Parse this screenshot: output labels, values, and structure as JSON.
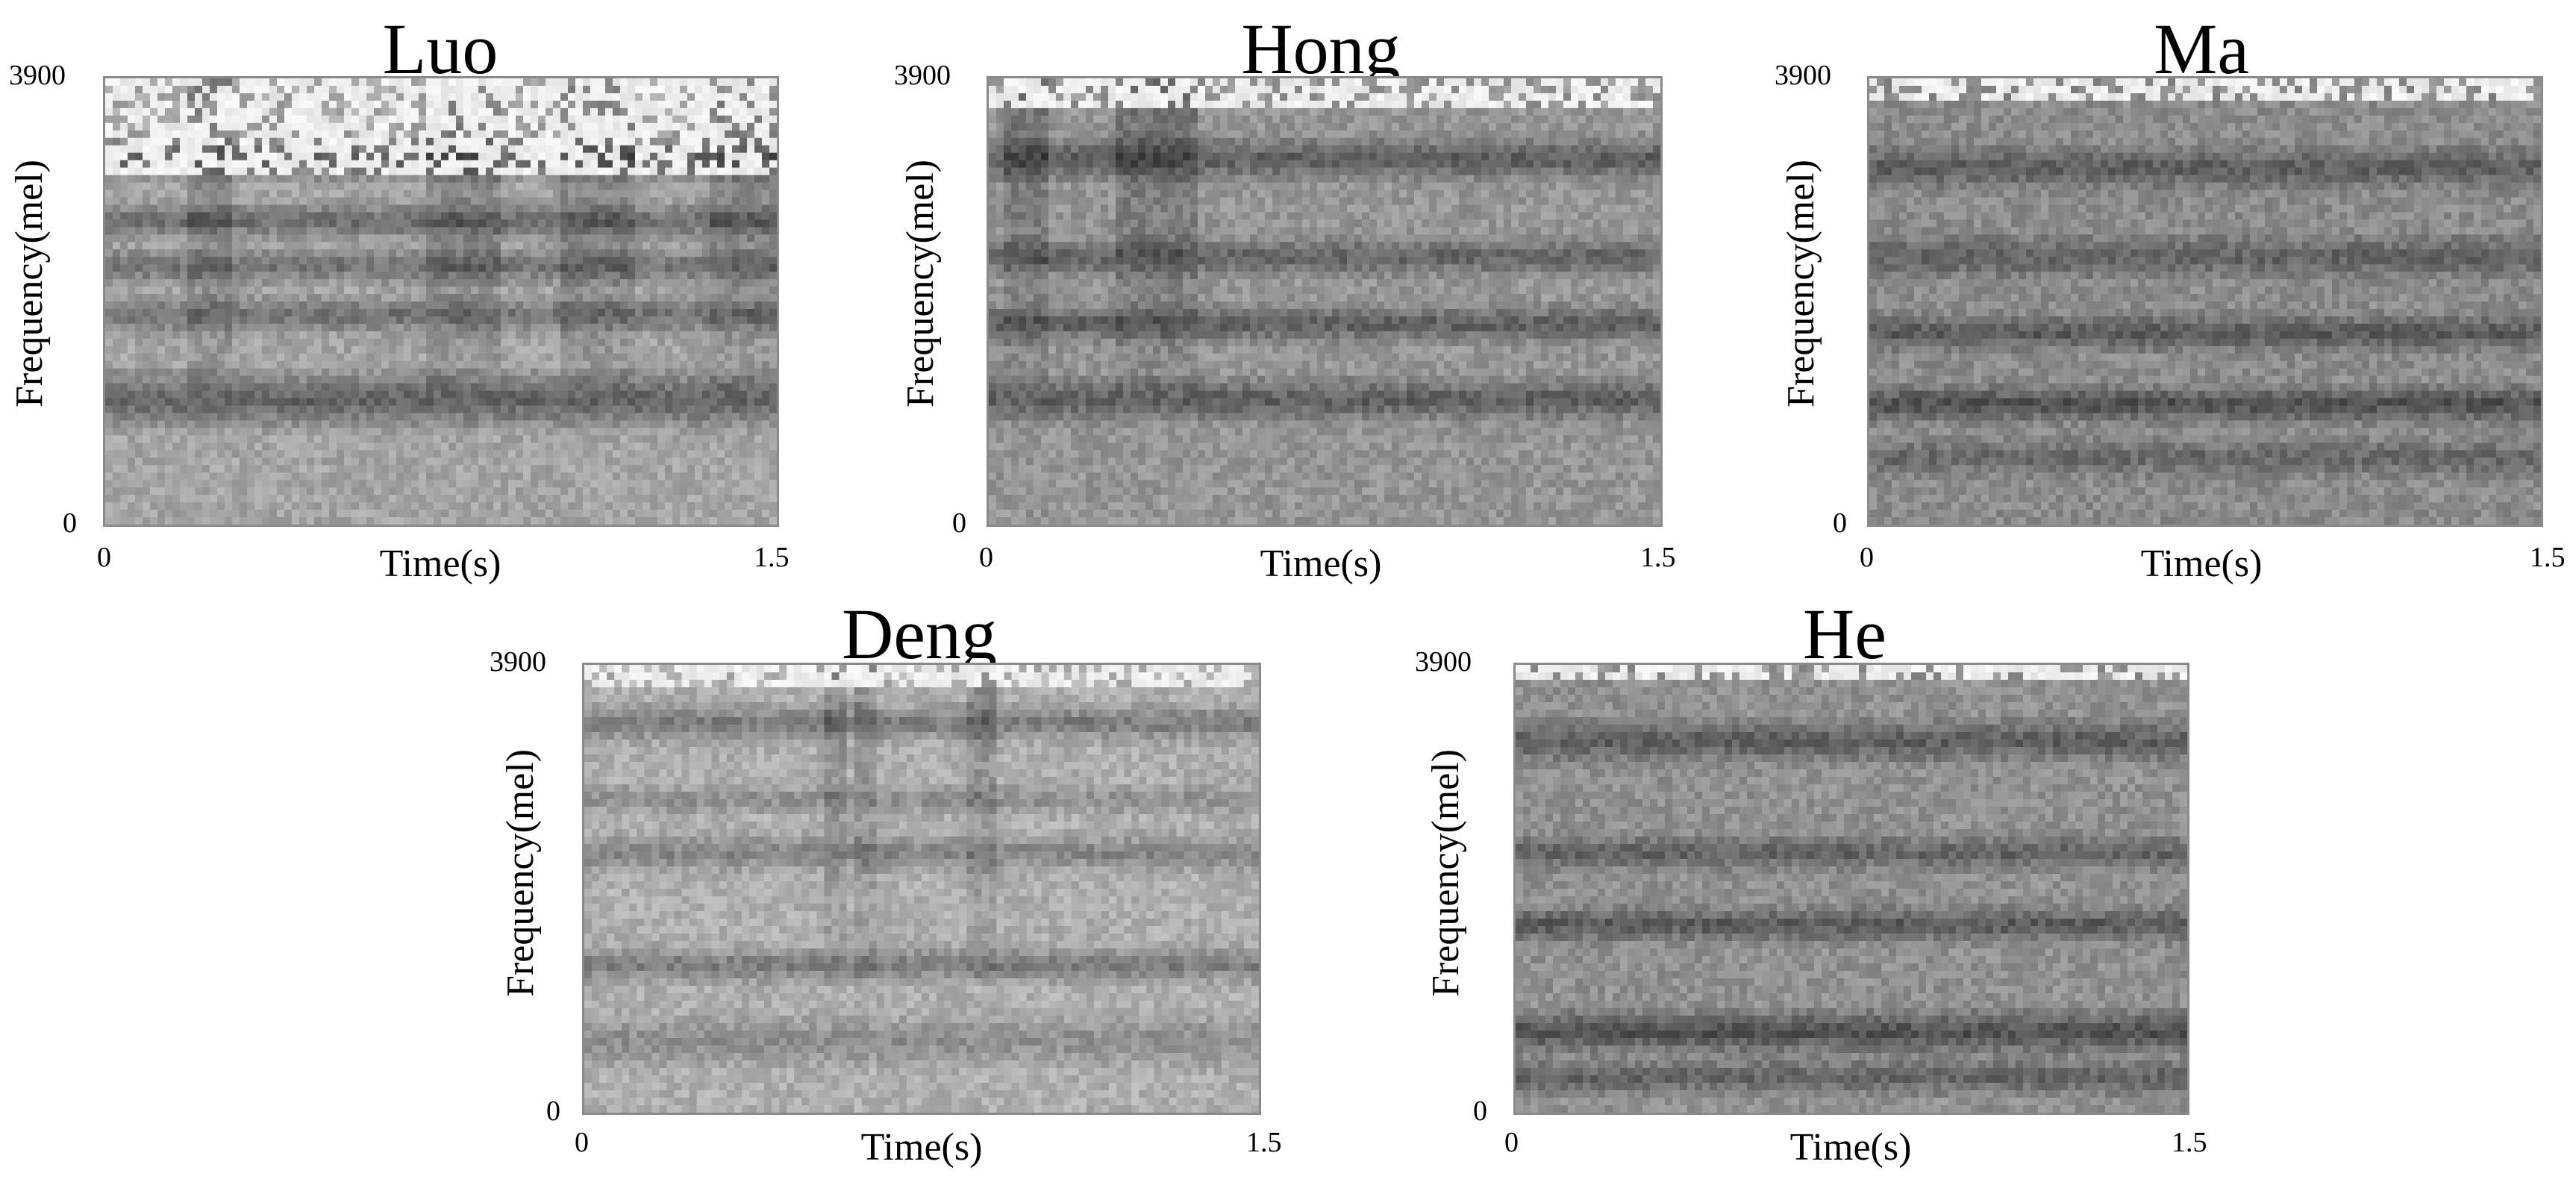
{
  "chart_data": [
    {
      "type": "heatmap",
      "title": "Luo",
      "xlabel": "Time(s)",
      "ylabel": "Frequency(mel)",
      "xlim": [
        0,
        1.5
      ],
      "ylim": [
        0,
        3900
      ],
      "x_ticks": [
        "0",
        "1.5"
      ],
      "y_ticks": [
        "0",
        "3900"
      ],
      "colormap": "grayscale"
    },
    {
      "type": "heatmap",
      "title": "Hong",
      "xlabel": "Time(s)",
      "ylabel": "Frequency(mel)",
      "xlim": [
        0,
        1.5
      ],
      "ylim": [
        0,
        3900
      ],
      "x_ticks": [
        "0",
        "1.5"
      ],
      "y_ticks": [
        "0",
        "3900"
      ],
      "colormap": "grayscale"
    },
    {
      "type": "heatmap",
      "title": "Ma",
      "xlabel": "Time(s)",
      "ylabel": "Frequency(mel)",
      "xlim": [
        0,
        1.5
      ],
      "ylim": [
        0,
        3900
      ],
      "x_ticks": [
        "0",
        "1.5"
      ],
      "y_ticks": [
        "0",
        "3900"
      ],
      "colormap": "grayscale"
    },
    {
      "type": "heatmap",
      "title": "Deng",
      "xlabel": "Time(s)",
      "ylabel": "Frequency(mel)",
      "xlim": [
        0,
        1.5
      ],
      "ylim": [
        0,
        3900
      ],
      "x_ticks": [
        "0",
        "1.5"
      ],
      "y_ticks": [
        "0",
        "3900"
      ],
      "colormap": "grayscale"
    },
    {
      "type": "heatmap",
      "title": "He",
      "xlabel": "Time(s)",
      "ylabel": "Frequency(mel)",
      "xlim": [
        0,
        1.5
      ],
      "ylim": [
        0,
        3900
      ],
      "x_ticks": [
        "0",
        "1.5"
      ],
      "y_ticks": [
        "0",
        "3900"
      ],
      "colormap": "grayscale"
    }
  ]
}
